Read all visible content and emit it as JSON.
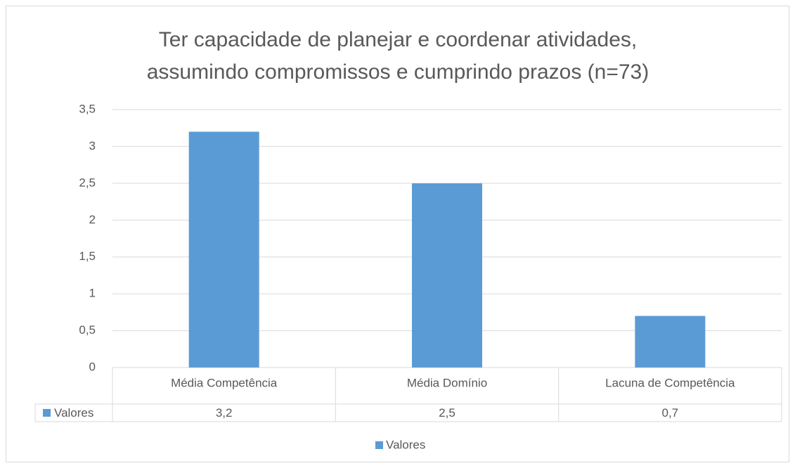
{
  "chart_data": {
    "type": "bar",
    "title": [
      "Ter capacidade de planejar e coordenar atividades,",
      "assumindo compromissos e cumprindo prazos (n=73)"
    ],
    "categories": [
      "Média Competência",
      "Média Domínio",
      "Lacuna de Competência"
    ],
    "series": [
      {
        "name": "Valores",
        "color": "#5b9bd5",
        "values": [
          3.2,
          2.5,
          0.7
        ],
        "value_labels": [
          "3,2",
          "2,5",
          "0,7"
        ]
      }
    ],
    "ylim": [
      0,
      3.5
    ],
    "yticks": [
      0,
      {
        "value": 0.5,
        "label": "0,5"
      },
      1,
      {
        "value": 1.5,
        "label": "1,5"
      },
      2,
      {
        "value": 2.5,
        "label": "2,5"
      },
      3,
      {
        "value": 3.5,
        "label": "3,5"
      }
    ],
    "grid": true,
    "legend": "bottom"
  }
}
